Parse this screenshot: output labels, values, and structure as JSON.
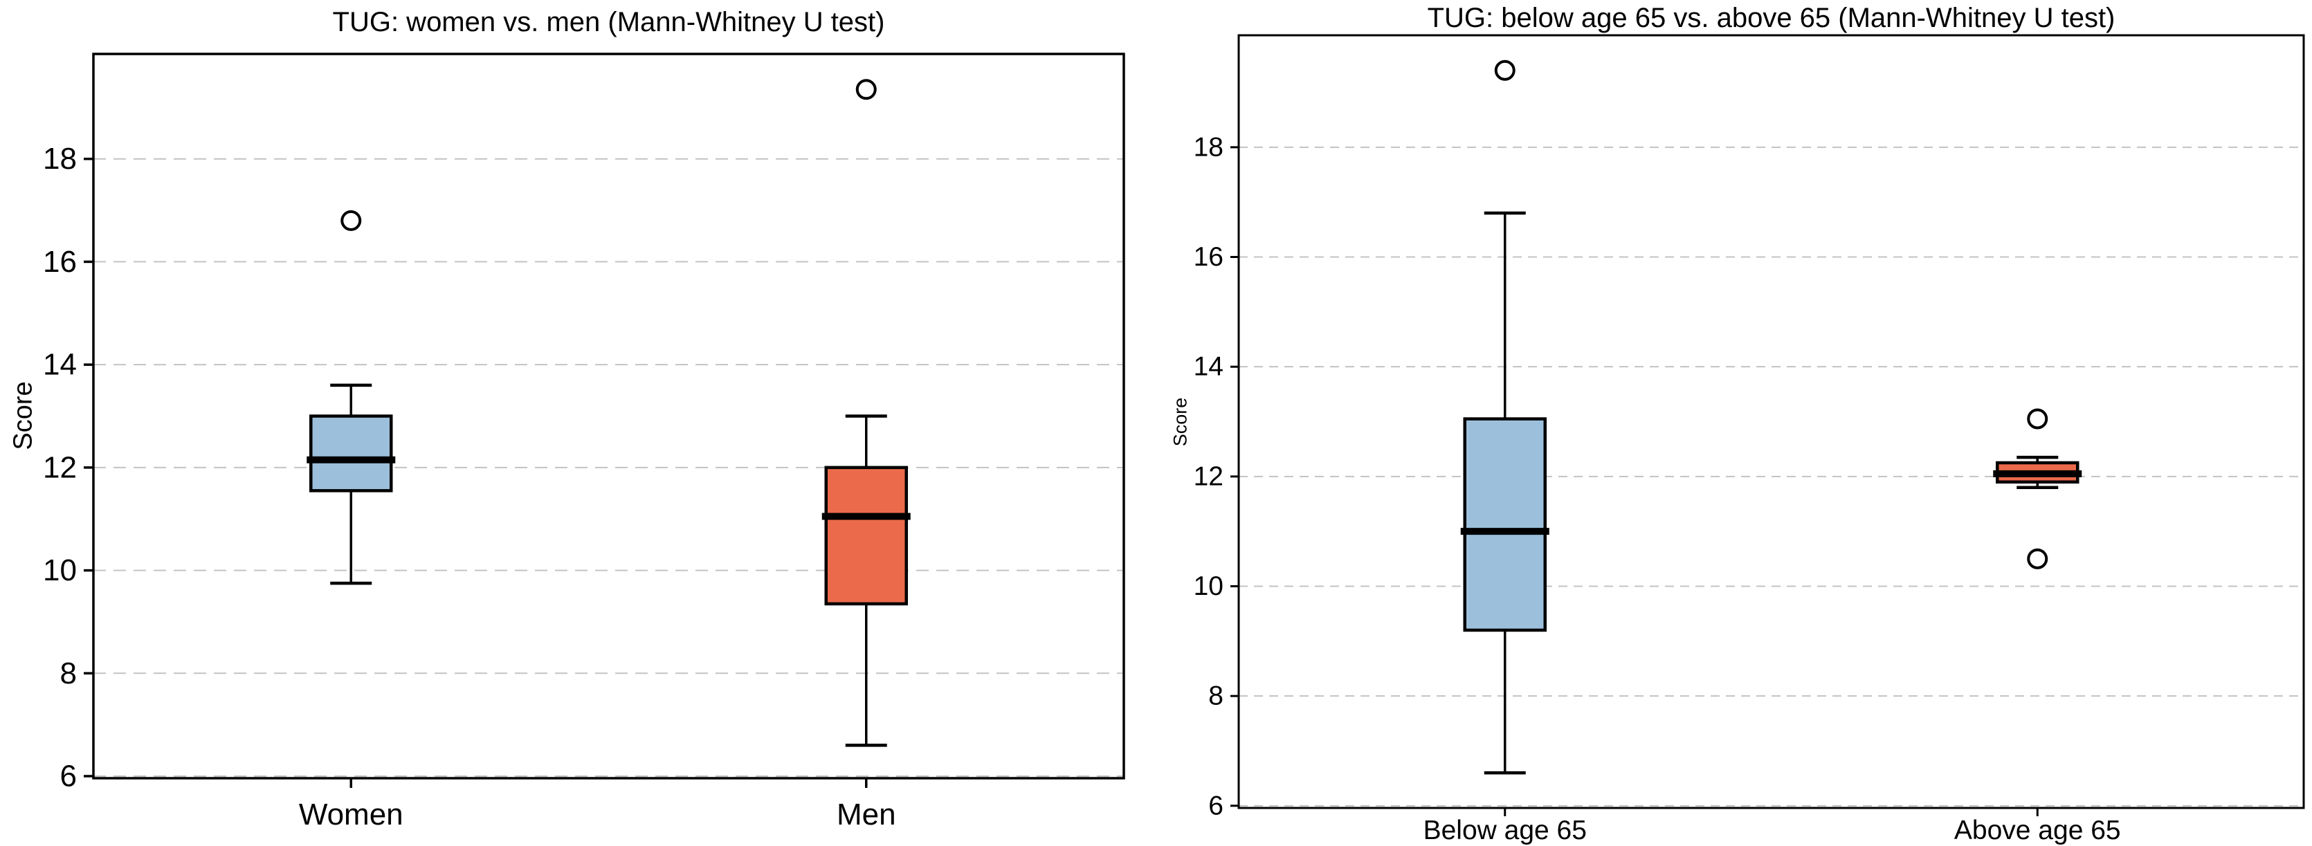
{
  "figure": {
    "background": "#ffffff",
    "grid_color": "#c3c3c3",
    "box_edge_color": "#000000",
    "blue_fill": "#9CC0DC",
    "red_fill": "#EB6A4B"
  },
  "chart_data": [
    {
      "type": "box",
      "title": "TUG: women vs. men (Mann-Whitney U test)",
      "ylabel": "Score",
      "xlabel": "",
      "ylim": [
        5.96,
        20.04
      ],
      "yticks": [
        6,
        8,
        10,
        12,
        14,
        16,
        18
      ],
      "grid": {
        "axis": "y",
        "style": "dashed",
        "on": true
      },
      "legend": "none",
      "categories": [
        "Women",
        "Men"
      ],
      "series": [
        {
          "name": "Women",
          "box_color": "#9CC0DC",
          "whisker_low": 9.75,
          "q1": 11.55,
          "median": 12.15,
          "q3": 13.0,
          "whisker_high": 13.6,
          "outliers": [
            16.8
          ]
        },
        {
          "name": "Men",
          "box_color": "#EB6A4B",
          "whisker_low": 6.6,
          "q1": 9.35,
          "median": 11.05,
          "q3": 12.0,
          "whisker_high": 13.0,
          "outliers": [
            19.35
          ]
        }
      ]
    },
    {
      "type": "box",
      "title": "TUG: below age 65 vs. above 65 (Mann-Whitney U test)",
      "ylabel": "Score",
      "xlabel": "",
      "ylim": [
        5.96,
        20.04
      ],
      "yticks": [
        6,
        8,
        10,
        12,
        14,
        16,
        18
      ],
      "grid": {
        "axis": "y",
        "style": "dashed",
        "on": true
      },
      "legend": "none",
      "categories": [
        "Below age 65",
        "Above age 65"
      ],
      "series": [
        {
          "name": "Below age 65",
          "box_color": "#9CC0DC",
          "whisker_low": 6.6,
          "q1": 9.2,
          "median": 11.0,
          "q3": 13.05,
          "whisker_high": 16.8,
          "outliers": [
            19.4
          ]
        },
        {
          "name": "Above age 65",
          "box_color": "#EB6A4B",
          "whisker_low": 11.8,
          "q1": 11.9,
          "median": 12.05,
          "q3": 12.25,
          "whisker_high": 12.35,
          "outliers": [
            13.05,
            10.5
          ]
        }
      ]
    }
  ]
}
